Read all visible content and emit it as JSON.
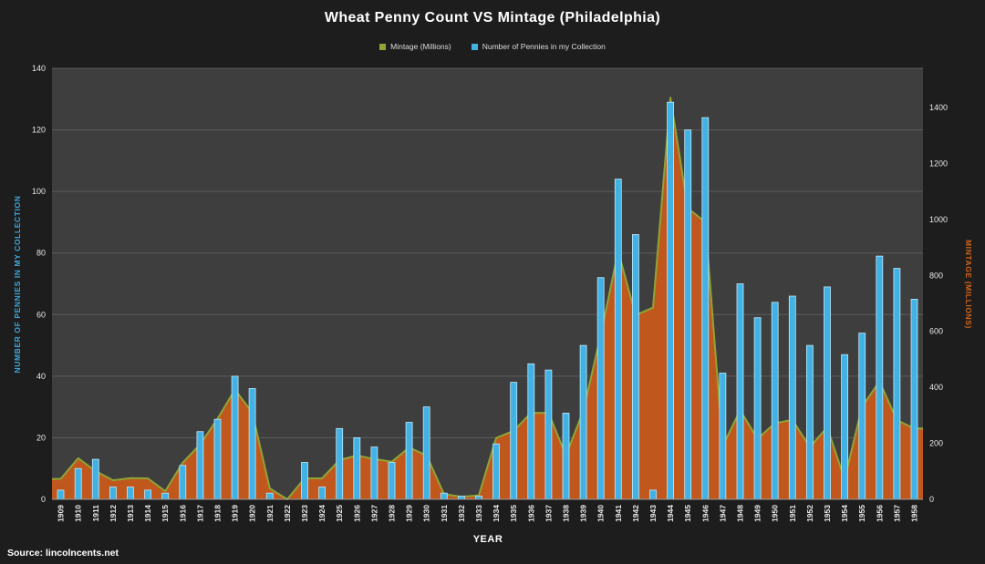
{
  "page": {
    "source": "Source: lincolncents.net"
  },
  "chart_data": {
    "type": "combo",
    "title": "Wheat Penny Count VS Mintage (Philadelphia)",
    "xlabel": "YEAR",
    "legend_position": "top",
    "grid": true,
    "left_axis": {
      "label": "NUMBER  OF PENNIES IN MY COLLECTION",
      "min": 0,
      "max": 140,
      "step": 20,
      "plot_max": 140
    },
    "right_axis": {
      "label": "MINTAGE (MILLIONS)",
      "min": 0,
      "max": 1400,
      "step": 200,
      "plot_max": 1540
    },
    "categories": [
      "1909",
      "1910",
      "1911",
      "1912",
      "1913",
      "1914",
      "1915",
      "1916",
      "1917",
      "1918",
      "1919",
      "1920",
      "1921",
      "1922",
      "1923",
      "1924",
      "1925",
      "1926",
      "1927",
      "1928",
      "1929",
      "1930",
      "1931",
      "1932",
      "1933",
      "1934",
      "1935",
      "1936",
      "1937",
      "1938",
      "1939",
      "1940",
      "1941",
      "1942",
      "1943",
      "1944",
      "1945",
      "1946",
      "1947",
      "1948",
      "1949",
      "1950",
      "1951",
      "1952",
      "1953",
      "1954",
      "1955",
      "1956",
      "1957",
      "1958"
    ],
    "series": [
      {
        "name": "Mintage (Millions)",
        "type": "area",
        "axis": "right",
        "fill": "#c0581e",
        "stroke": "#8fa435",
        "legend_color": "#8fa435",
        "values": [
          73,
          147,
          101,
          68,
          76,
          75,
          29,
          131,
          196,
          288,
          392,
          310,
          39,
          0,
          75,
          75,
          140,
          157,
          144,
          134,
          185,
          157,
          19,
          9,
          14,
          219,
          245,
          309,
          309,
          157,
          316,
          587,
          887,
          658,
          685,
          1435,
          1040,
          991,
          190,
          318,
          217,
          272,
          284,
          187,
          257,
          72,
          331,
          421,
          283,
          253
        ]
      },
      {
        "name": "Number of Pennies in my Collection",
        "type": "bar",
        "axis": "left",
        "fill": "#42b2e5",
        "stroke": "#bfe9fa",
        "legend_color": "#42b2e5",
        "values": [
          3,
          10,
          13,
          4,
          4,
          3,
          2,
          11,
          22,
          26,
          40,
          36,
          2,
          0,
          12,
          4,
          23,
          20,
          17,
          12,
          25,
          30,
          2,
          1,
          1,
          18,
          38,
          44,
          42,
          28,
          50,
          72,
          104,
          86,
          3,
          129,
          120,
          124,
          41,
          70,
          59,
          64,
          66,
          50,
          69,
          47,
          54,
          79,
          75,
          65
        ]
      }
    ],
    "colors": {
      "page_bg": "#1d1d1d",
      "plot_bg": "#3e3e3e",
      "grid": "#5c5c5c",
      "axis_line": "#9a9a9a",
      "axis_text": "#e8e8e8",
      "title": "#ffffff",
      "left_label": "#3fa9dc",
      "right_label": "#d2651c"
    }
  }
}
